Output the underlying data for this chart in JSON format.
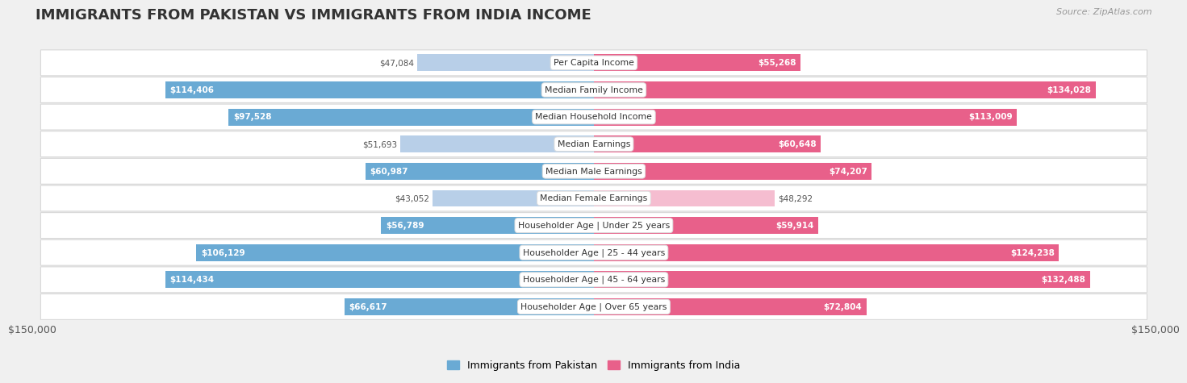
{
  "title": "IMMIGRANTS FROM PAKISTAN VS IMMIGRANTS FROM INDIA INCOME",
  "source": "Source: ZipAtlas.com",
  "categories": [
    "Per Capita Income",
    "Median Family Income",
    "Median Household Income",
    "Median Earnings",
    "Median Male Earnings",
    "Median Female Earnings",
    "Householder Age | Under 25 years",
    "Householder Age | 25 - 44 years",
    "Householder Age | 45 - 64 years",
    "Householder Age | Over 65 years"
  ],
  "pakistan_values": [
    47084,
    114406,
    97528,
    51693,
    60987,
    43052,
    56789,
    106129,
    114434,
    66617
  ],
  "india_values": [
    55268,
    134028,
    113009,
    60648,
    74207,
    48292,
    59914,
    124238,
    132488,
    72804
  ],
  "pakistan_color_light": "#b8cfe8",
  "pakistan_color_dark": "#6aaad4",
  "india_color_light": "#f5bdd0",
  "india_color_dark": "#e8608a",
  "pakistan_label": "Immigrants from Pakistan",
  "india_label": "Immigrants from India",
  "max_value": 150000,
  "x_tick_labels": [
    "$150,000",
    "$150,000"
  ],
  "background_color": "#f0f0f0",
  "row_bg_color": "#ffffff",
  "row_border_color": "#d8d8d8",
  "inside_threshold": 52500,
  "title_color": "#333333",
  "source_color": "#999999",
  "label_dark_color": "#555555",
  "label_white_color": "#ffffff"
}
